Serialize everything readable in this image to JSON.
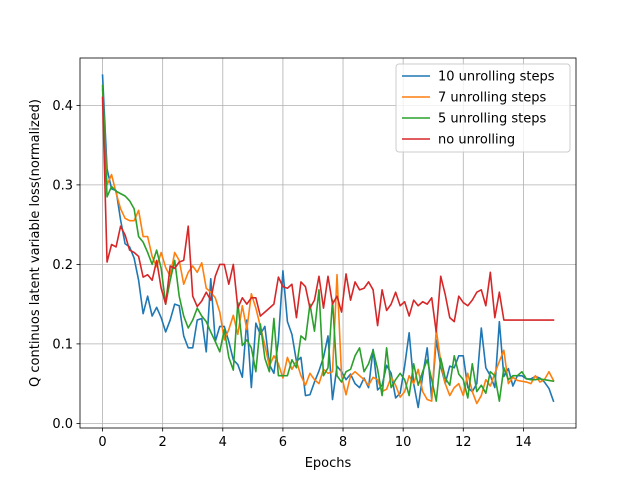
{
  "chart_data": {
    "type": "line",
    "xlabel": "Epochs",
    "ylabel": "Q continuos latent variable loss(normalized)",
    "xlim": [
      -0.75,
      15.75
    ],
    "ylim": [
      -0.0058,
      0.4596
    ],
    "xticks": [
      0,
      2,
      4,
      6,
      8,
      10,
      12,
      14
    ],
    "xtick_labels": [
      "0",
      "2",
      "4",
      "6",
      "8",
      "10",
      "12",
      "14"
    ],
    "yticks": [
      0.0,
      0.1,
      0.2,
      0.3,
      0.4
    ],
    "ytick_labels": [
      "0.0",
      "0.1",
      "0.2",
      "0.3",
      "0.4"
    ],
    "grid": true,
    "legend_position": "top-right",
    "x": [
      0.0,
      0.15,
      0.3,
      0.45,
      0.6,
      0.75,
      0.9,
      1.05,
      1.2,
      1.35,
      1.5,
      1.65,
      1.8,
      1.95,
      2.1,
      2.25,
      2.4,
      2.55,
      2.7,
      2.85,
      3.0,
      3.15,
      3.3,
      3.45,
      3.6,
      3.75,
      3.9,
      4.05,
      4.2,
      4.35,
      4.5,
      4.65,
      4.8,
      4.95,
      5.1,
      5.25,
      5.4,
      5.55,
      5.7,
      5.85,
      6.0,
      6.15,
      6.3,
      6.45,
      6.6,
      6.75,
      6.9,
      7.05,
      7.2,
      7.35,
      7.5,
      7.65,
      7.8,
      7.95,
      8.1,
      8.25,
      8.4,
      8.55,
      8.7,
      8.85,
      9.0,
      9.15,
      9.3,
      9.45,
      9.6,
      9.75,
      9.9,
      10.05,
      10.2,
      10.35,
      10.5,
      10.65,
      10.8,
      10.95,
      11.1,
      11.25,
      11.4,
      11.55,
      11.7,
      11.85,
      12.0,
      12.15,
      12.3,
      12.45,
      12.6,
      12.75,
      12.9,
      13.05,
      13.2,
      13.35,
      13.5,
      13.65,
      13.8,
      13.95,
      14.1,
      14.25,
      14.4,
      14.55,
      14.7,
      14.85,
      15.0
    ],
    "series": [
      {
        "name": "10 unrolling steps",
        "color": "#1f77b4",
        "values": [
          0.438,
          0.32,
          0.295,
          0.293,
          0.256,
          0.226,
          0.222,
          0.208,
          0.18,
          0.138,
          0.16,
          0.135,
          0.146,
          0.133,
          0.115,
          0.13,
          0.15,
          0.148,
          0.11,
          0.095,
          0.095,
          0.13,
          0.132,
          0.09,
          0.182,
          0.103,
          0.122,
          0.122,
          0.103,
          0.08,
          0.074,
          0.058,
          0.13,
          0.045,
          0.126,
          0.112,
          0.122,
          0.074,
          0.063,
          0.104,
          0.192,
          0.128,
          0.112,
          0.078,
          0.083,
          0.035,
          0.036,
          0.052,
          0.066,
          0.083,
          0.11,
          0.03,
          0.072,
          0.065,
          0.055,
          0.062,
          0.05,
          0.045,
          0.057,
          0.045,
          0.093,
          0.042,
          0.048,
          0.073,
          0.063,
          0.032,
          0.038,
          0.072,
          0.114,
          0.05,
          0.02,
          0.06,
          0.095,
          0.03,
          0.105,
          0.072,
          0.05,
          0.072,
          0.07,
          0.085,
          0.085,
          0.045,
          0.04,
          0.05,
          0.12,
          0.07,
          0.06,
          0.045,
          0.128,
          0.059,
          0.069,
          0.047,
          0.06,
          0.06,
          0.056,
          0.056,
          0.059,
          0.057,
          0.052,
          0.044,
          0.028
        ]
      },
      {
        "name": "7 unrolling steps",
        "color": "#ff7f0e",
        "values": [
          0.42,
          0.3,
          0.313,
          0.29,
          0.27,
          0.258,
          0.255,
          0.255,
          0.268,
          0.235,
          0.235,
          0.21,
          0.197,
          0.215,
          0.196,
          0.185,
          0.215,
          0.205,
          0.175,
          0.19,
          0.198,
          0.19,
          0.202,
          0.17,
          0.165,
          0.158,
          0.14,
          0.105,
          0.118,
          0.136,
          0.112,
          0.148,
          0.118,
          0.163,
          0.145,
          0.122,
          0.098,
          0.072,
          0.085,
          0.075,
          0.057,
          0.083,
          0.068,
          0.078,
          0.06,
          0.048,
          0.063,
          0.055,
          0.05,
          0.068,
          0.063,
          0.065,
          0.187,
          0.06,
          0.036,
          0.06,
          0.065,
          0.06,
          0.055,
          0.048,
          0.058,
          0.055,
          0.04,
          0.043,
          0.058,
          0.048,
          0.033,
          0.04,
          0.06,
          0.05,
          0.068,
          0.04,
          0.03,
          0.028,
          0.118,
          0.078,
          0.05,
          0.035,
          0.045,
          0.05,
          0.035,
          0.063,
          0.04,
          0.025,
          0.035,
          0.055,
          0.047,
          0.063,
          0.078,
          0.092,
          0.05,
          0.058,
          0.054,
          0.053,
          0.052,
          0.05,
          0.06,
          0.052,
          0.055,
          0.065,
          0.054
        ]
      },
      {
        "name": "5 unrolling steps",
        "color": "#2ca02c",
        "values": [
          0.425,
          0.285,
          0.298,
          0.292,
          0.289,
          0.286,
          0.28,
          0.27,
          0.235,
          0.228,
          0.215,
          0.2,
          0.218,
          0.195,
          0.15,
          0.18,
          0.205,
          0.16,
          0.135,
          0.12,
          0.13,
          0.145,
          0.135,
          0.128,
          0.115,
          0.103,
          0.09,
          0.118,
          0.083,
          0.067,
          0.152,
          0.098,
          0.105,
          0.095,
          0.065,
          0.125,
          0.082,
          0.065,
          0.132,
          0.06,
          0.06,
          0.06,
          0.08,
          0.07,
          0.11,
          0.105,
          0.15,
          0.116,
          0.168,
          0.06,
          0.07,
          0.155,
          0.06,
          0.052,
          0.065,
          0.068,
          0.085,
          0.095,
          0.065,
          0.075,
          0.092,
          0.068,
          0.035,
          0.095,
          0.045,
          0.055,
          0.063,
          0.055,
          0.035,
          0.075,
          0.048,
          0.065,
          0.08,
          0.055,
          0.028,
          0.082,
          0.057,
          0.048,
          0.085,
          0.062,
          0.055,
          0.032,
          0.075,
          0.04,
          0.048,
          0.038,
          0.065,
          0.06,
          0.028,
          0.07,
          0.055,
          0.06,
          0.06,
          0.065,
          0.056,
          0.055,
          0.055,
          0.056,
          0.055,
          0.054,
          0.053
        ]
      },
      {
        "name": "no unrolling",
        "color": "#d62728",
        "values": [
          0.41,
          0.203,
          0.225,
          0.222,
          0.248,
          0.237,
          0.218,
          0.215,
          0.21,
          0.184,
          0.187,
          0.18,
          0.205,
          0.17,
          0.15,
          0.198,
          0.195,
          0.203,
          0.205,
          0.248,
          0.16,
          0.147,
          0.154,
          0.165,
          0.155,
          0.185,
          0.2,
          0.2,
          0.175,
          0.2,
          0.145,
          0.158,
          0.15,
          0.158,
          0.158,
          0.135,
          0.14,
          0.145,
          0.15,
          0.184,
          0.172,
          0.17,
          0.175,
          0.133,
          0.178,
          0.172,
          0.145,
          0.155,
          0.185,
          0.145,
          0.185,
          0.15,
          0.16,
          0.14,
          0.188,
          0.155,
          0.178,
          0.168,
          0.17,
          0.178,
          0.168,
          0.123,
          0.168,
          0.142,
          0.15,
          0.165,
          0.148,
          0.153,
          0.135,
          0.155,
          0.148,
          0.153,
          0.15,
          0.158,
          0.115,
          0.185,
          0.162,
          0.133,
          0.128,
          0.16,
          0.152,
          0.148,
          0.155,
          0.165,
          0.168,
          0.148,
          0.19,
          0.133,
          0.165,
          0.13,
          0.13,
          0.13,
          0.13,
          0.13,
          0.13,
          0.13,
          0.13,
          0.13,
          0.13,
          0.13,
          0.13
        ]
      }
    ]
  }
}
